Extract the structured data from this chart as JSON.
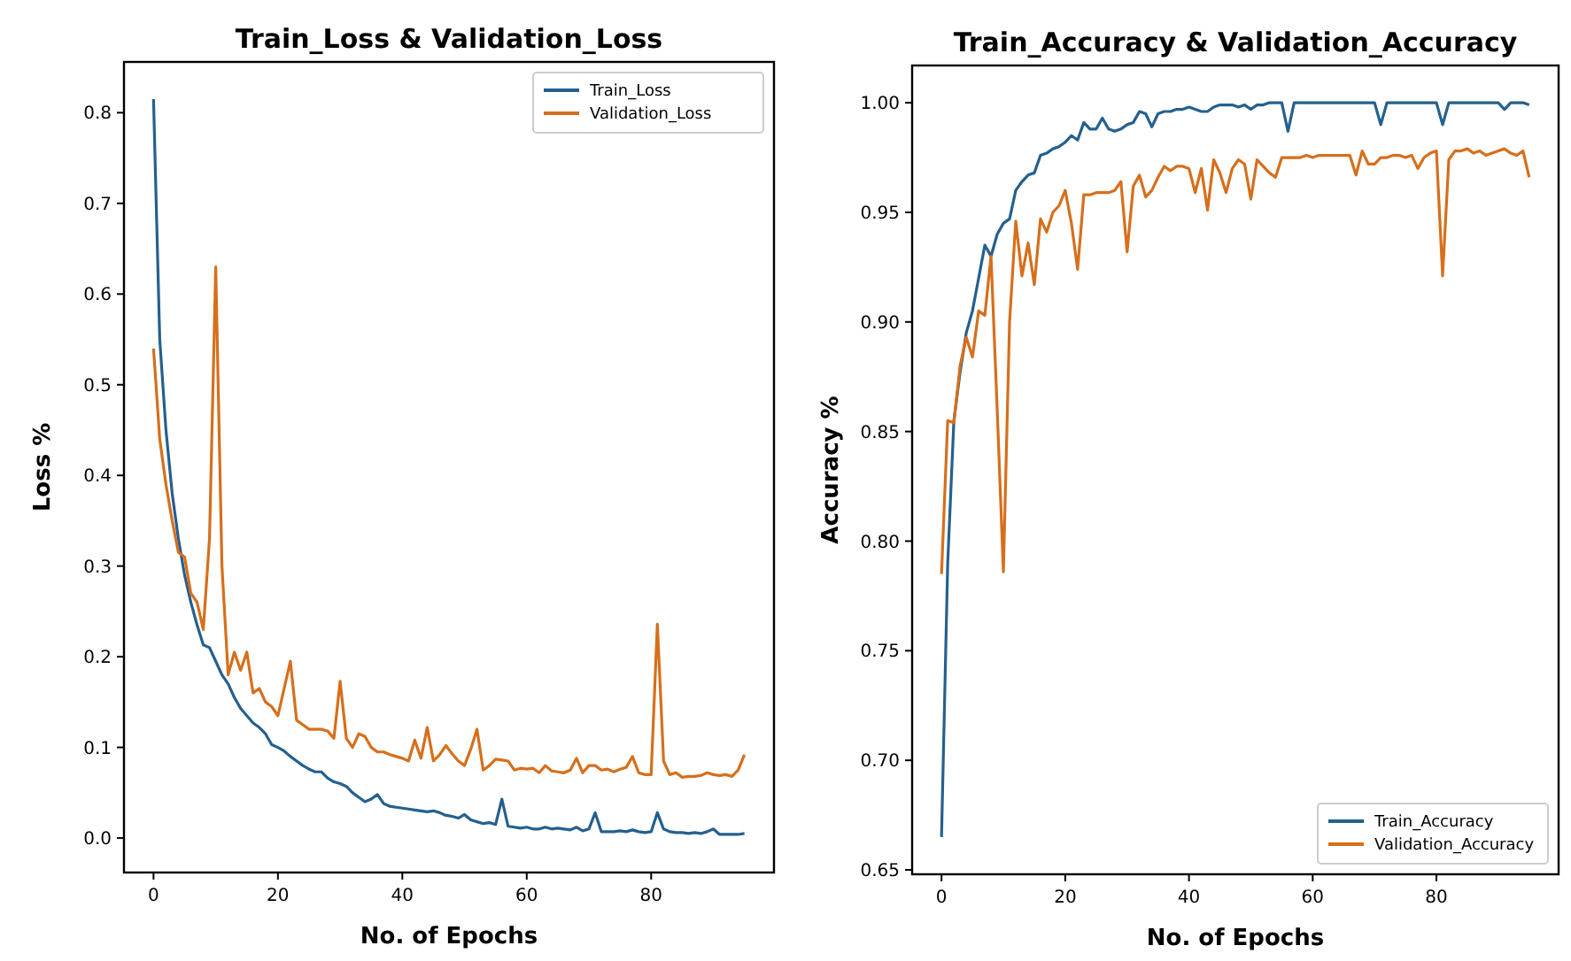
{
  "chart_data": [
    {
      "type": "line",
      "title": "Train_Loss & Validation_Loss",
      "xlabel": "No. of Epochs",
      "ylabel": "Loss %",
      "legend": "top right",
      "x": [
        0,
        1,
        2,
        3,
        4,
        5,
        6,
        7,
        8,
        9,
        10,
        11,
        12,
        13,
        14,
        15,
        16,
        17,
        18,
        19,
        20,
        21,
        22,
        23,
        24,
        25,
        26,
        27,
        28,
        29,
        30,
        31,
        32,
        33,
        34,
        35,
        36,
        37,
        38,
        39,
        40,
        41,
        42,
        43,
        44,
        45,
        46,
        47,
        48,
        49,
        50,
        51,
        52,
        53,
        54,
        55,
        56,
        57,
        58,
        59,
        60,
        61,
        62,
        63,
        64,
        65,
        66,
        67,
        68,
        69,
        70,
        71,
        72,
        73,
        74,
        75,
        76,
        77,
        78,
        79,
        80,
        81,
        82,
        83,
        84,
        85,
        86,
        87,
        88,
        89,
        90,
        91,
        92,
        93,
        94,
        95
      ],
      "xlim": [
        -4.75,
        99.75
      ],
      "xticks": [
        0,
        20,
        40,
        60,
        80
      ],
      "ylim": [
        -0.038,
        0.856
      ],
      "yticks": [
        {
          "value": 0,
          "label": "0.0"
        },
        {
          "value": 0.1,
          "label": "0.1"
        },
        {
          "value": 0.2,
          "label": "0.2"
        },
        {
          "value": 0.3,
          "label": "0.3"
        },
        {
          "value": 0.4,
          "label": "0.4"
        },
        {
          "value": 0.5,
          "label": "0.5"
        },
        {
          "value": 0.6,
          "label": "0.6"
        },
        {
          "value": 0.7,
          "label": "0.7"
        },
        {
          "value": 0.8,
          "label": "0.8"
        }
      ],
      "series": [
        {
          "name": "Train_Loss",
          "color": "#24608f",
          "values": [
            0.815,
            0.55,
            0.45,
            0.38,
            0.33,
            0.29,
            0.26,
            0.235,
            0.213,
            0.21,
            0.195,
            0.18,
            0.17,
            0.155,
            0.143,
            0.135,
            0.127,
            0.122,
            0.115,
            0.103,
            0.1,
            0.096,
            0.09,
            0.085,
            0.08,
            0.076,
            0.073,
            0.073,
            0.066,
            0.062,
            0.06,
            0.057,
            0.05,
            0.045,
            0.04,
            0.043,
            0.048,
            0.038,
            0.035,
            0.034,
            0.033,
            0.032,
            0.031,
            0.03,
            0.029,
            0.03,
            0.028,
            0.025,
            0.024,
            0.022,
            0.026,
            0.02,
            0.018,
            0.016,
            0.017,
            0.015,
            0.043,
            0.013,
            0.012,
            0.011,
            0.012,
            0.01,
            0.01,
            0.012,
            0.01,
            0.011,
            0.01,
            0.009,
            0.012,
            0.008,
            0.01,
            0.028,
            0.007,
            0.007,
            0.007,
            0.008,
            0.007,
            0.009,
            0.007,
            0.006,
            0.007,
            0.028,
            0.01,
            0.007,
            0.006,
            0.006,
            0.005,
            0.006,
            0.005,
            0.007,
            0.01,
            0.004,
            0.004,
            0.004,
            0.004,
            0.005
          ]
        },
        {
          "name": "Validation_Loss",
          "color": "#d66f1c",
          "values": [
            0.54,
            0.44,
            0.39,
            0.35,
            0.315,
            0.31,
            0.27,
            0.26,
            0.23,
            0.33,
            0.63,
            0.3,
            0.18,
            0.205,
            0.185,
            0.205,
            0.16,
            0.165,
            0.15,
            0.145,
            0.135,
            0.165,
            0.195,
            0.13,
            0.125,
            0.12,
            0.12,
            0.12,
            0.118,
            0.11,
            0.173,
            0.11,
            0.1,
            0.115,
            0.112,
            0.1,
            0.095,
            0.095,
            0.092,
            0.09,
            0.088,
            0.085,
            0.108,
            0.088,
            0.122,
            0.085,
            0.092,
            0.102,
            0.093,
            0.085,
            0.08,
            0.098,
            0.12,
            0.075,
            0.08,
            0.087,
            0.086,
            0.085,
            0.075,
            0.077,
            0.076,
            0.077,
            0.072,
            0.08,
            0.074,
            0.073,
            0.072,
            0.075,
            0.088,
            0.072,
            0.08,
            0.08,
            0.075,
            0.076,
            0.073,
            0.076,
            0.078,
            0.09,
            0.072,
            0.07,
            0.07,
            0.236,
            0.085,
            0.07,
            0.072,
            0.067,
            0.068,
            0.068,
            0.069,
            0.072,
            0.07,
            0.069,
            0.07,
            0.068,
            0.075,
            0.092
          ]
        }
      ]
    },
    {
      "type": "line",
      "title": "Train_Accuracy & Validation_Accuracy",
      "xlabel": "No. of Epochs",
      "ylabel": "Accuracy %",
      "legend": "bottom right",
      "x": [
        0,
        1,
        2,
        3,
        4,
        5,
        6,
        7,
        8,
        9,
        10,
        11,
        12,
        13,
        14,
        15,
        16,
        17,
        18,
        19,
        20,
        21,
        22,
        23,
        24,
        25,
        26,
        27,
        28,
        29,
        30,
        31,
        32,
        33,
        34,
        35,
        36,
        37,
        38,
        39,
        40,
        41,
        42,
        43,
        44,
        45,
        46,
        47,
        48,
        49,
        50,
        51,
        52,
        53,
        54,
        55,
        56,
        57,
        58,
        59,
        60,
        61,
        62,
        63,
        64,
        65,
        66,
        67,
        68,
        69,
        70,
        71,
        72,
        73,
        74,
        75,
        76,
        77,
        78,
        79,
        80,
        81,
        82,
        83,
        84,
        85,
        86,
        87,
        88,
        89,
        90,
        91,
        92,
        93,
        94,
        95
      ],
      "xlim": [
        -4.75,
        99.75
      ],
      "xticks": [
        0,
        20,
        40,
        60,
        80
      ],
      "ylim": [
        0.648,
        1.017
      ],
      "yticks": [
        {
          "value": 0.65,
          "label": "0.65"
        },
        {
          "value": 0.7,
          "label": "0.70"
        },
        {
          "value": 0.75,
          "label": "0.75"
        },
        {
          "value": 0.8,
          "label": "0.80"
        },
        {
          "value": 0.85,
          "label": "0.85"
        },
        {
          "value": 0.9,
          "label": "0.90"
        },
        {
          "value": 0.95,
          "label": "0.95"
        },
        {
          "value": 1,
          "label": "1.00"
        }
      ],
      "series": [
        {
          "name": "Train_Accuracy",
          "color": "#24608f",
          "values": [
            0.665,
            0.79,
            0.855,
            0.877,
            0.895,
            0.905,
            0.92,
            0.935,
            0.93,
            0.94,
            0.945,
            0.947,
            0.96,
            0.964,
            0.967,
            0.968,
            0.976,
            0.977,
            0.979,
            0.98,
            0.982,
            0.985,
            0.983,
            0.991,
            0.988,
            0.988,
            0.993,
            0.988,
            0.987,
            0.988,
            0.99,
            0.991,
            0.996,
            0.995,
            0.989,
            0.995,
            0.996,
            0.996,
            0.997,
            0.997,
            0.998,
            0.997,
            0.996,
            0.996,
            0.998,
            0.999,
            0.999,
            0.999,
            0.998,
            0.999,
            0.997,
            0.999,
            0.999,
            1,
            1,
            1,
            0.987,
            1,
            1,
            1,
            1,
            1,
            1,
            1,
            1,
            1,
            1,
            1,
            1,
            1,
            1,
            0.99,
            1,
            1,
            1,
            1,
            1,
            1,
            1,
            1,
            1,
            0.99,
            1,
            1,
            1,
            1,
            1,
            1,
            1,
            1,
            1,
            0.997,
            1,
            1,
            1,
            0.999
          ]
        },
        {
          "name": "Validation_Accuracy",
          "color": "#d66f1c",
          "values": [
            0.785,
            0.855,
            0.854,
            0.88,
            0.893,
            0.884,
            0.905,
            0.903,
            0.93,
            0.86,
            0.786,
            0.9,
            0.946,
            0.921,
            0.936,
            0.917,
            0.947,
            0.941,
            0.95,
            0.953,
            0.96,
            0.945,
            0.924,
            0.958,
            0.958,
            0.959,
            0.959,
            0.959,
            0.96,
            0.964,
            0.932,
            0.962,
            0.967,
            0.957,
            0.96,
            0.966,
            0.971,
            0.969,
            0.971,
            0.971,
            0.97,
            0.959,
            0.97,
            0.951,
            0.974,
            0.968,
            0.959,
            0.97,
            0.974,
            0.972,
            0.956,
            0.974,
            0.971,
            0.968,
            0.966,
            0.975,
            0.975,
            0.975,
            0.975,
            0.976,
            0.975,
            0.976,
            0.976,
            0.976,
            0.976,
            0.976,
            0.976,
            0.967,
            0.978,
            0.972,
            0.972,
            0.975,
            0.975,
            0.976,
            0.976,
            0.975,
            0.976,
            0.97,
            0.975,
            0.977,
            0.978,
            0.921,
            0.974,
            0.978,
            0.978,
            0.979,
            0.977,
            0.978,
            0.976,
            0.977,
            0.978,
            0.979,
            0.977,
            0.976,
            0.978,
            0.966
          ]
        }
      ]
    }
  ]
}
